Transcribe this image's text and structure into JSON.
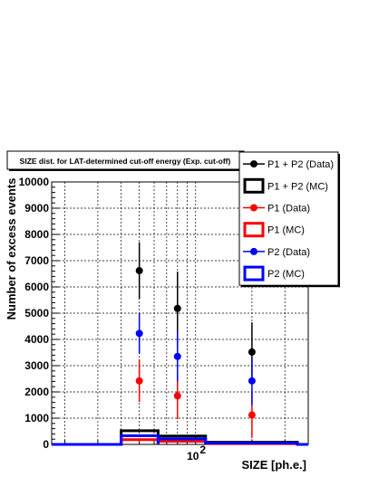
{
  "chart_data": {
    "type": "scatter",
    "title": "SIZE dist. for LAT-determined cut-off energy (Exp. cut-off)",
    "xlabel": "SIZE [ph.e.]",
    "ylabel": "Number of excess events",
    "x_scale": "log",
    "xlim": [
      17,
      400
    ],
    "ylim": [
      0,
      10000
    ],
    "y_ticks": [
      0,
      1000,
      2000,
      3000,
      4000,
      5000,
      6000,
      7000,
      8000,
      9000,
      10000
    ],
    "x_tick_labels": [
      {
        "value": 100,
        "base": "10",
        "exp": "2"
      }
    ],
    "grid": true,
    "legend_position": "top-right",
    "colors": {
      "black": "#000000",
      "red": "#ff0000",
      "blue": "#0000ff"
    },
    "series": [
      {
        "name": "P1 + P2 (Data)",
        "kind": "points",
        "color": "#000000",
        "points": [
          {
            "x": 50,
            "y": 6620,
            "lo": 5550,
            "hi": 7700
          },
          {
            "x": 80,
            "y": 5180,
            "lo": 3750,
            "hi": 6580
          },
          {
            "x": 200,
            "y": 3520,
            "lo": 2400,
            "hi": 4650
          }
        ]
      },
      {
        "name": "P1 + P2 (MC)",
        "kind": "hist",
        "color": "#000000",
        "bins": [
          {
            "x0": 40,
            "x1": 63,
            "y": 520
          },
          {
            "x0": 63,
            "x1": 113,
            "y": 320
          },
          {
            "x0": 113,
            "x1": 350,
            "y": 80
          }
        ]
      },
      {
        "name": "P1 (Data)",
        "kind": "points",
        "color": "#ff0000",
        "points": [
          {
            "x": 50,
            "y": 2420,
            "lo": 1620,
            "hi": 3230
          },
          {
            "x": 80,
            "y": 1850,
            "lo": 960,
            "hi": 2720
          },
          {
            "x": 200,
            "y": 1120,
            "lo": 250,
            "hi": 1980
          }
        ]
      },
      {
        "name": "P1 (MC)",
        "kind": "hist",
        "color": "#ff0000",
        "bins": [
          {
            "x0": 40,
            "x1": 63,
            "y": 180
          },
          {
            "x0": 63,
            "x1": 113,
            "y": 120
          },
          {
            "x0": 113,
            "x1": 350,
            "y": 30
          }
        ]
      },
      {
        "name": "P2 (Data)",
        "kind": "points",
        "color": "#0000ff",
        "points": [
          {
            "x": 50,
            "y": 4230,
            "lo": 3450,
            "hi": 5000
          },
          {
            "x": 80,
            "y": 3350,
            "lo": 2400,
            "hi": 4300
          },
          {
            "x": 200,
            "y": 2420,
            "lo": 1500,
            "hi": 3300
          }
        ]
      },
      {
        "name": "P2 (MC)",
        "kind": "hist",
        "color": "#0000ff",
        "bins": [
          {
            "x0": 40,
            "x1": 63,
            "y": 330
          },
          {
            "x0": 63,
            "x1": 113,
            "y": 210
          },
          {
            "x0": 113,
            "x1": 350,
            "y": 50
          }
        ]
      }
    ]
  }
}
